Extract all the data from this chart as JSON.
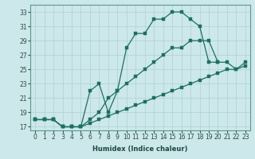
{
  "xlabel": "Humidex (Indice chaleur)",
  "background_color": "#cce8ea",
  "grid_color": "#b0d0d0",
  "line_color": "#1a7060",
  "xlim": [
    -0.5,
    23.5
  ],
  "ylim": [
    16.5,
    34
  ],
  "xticks": [
    0,
    1,
    2,
    3,
    4,
    5,
    6,
    7,
    8,
    9,
    10,
    11,
    12,
    13,
    14,
    15,
    16,
    17,
    18,
    19,
    20,
    21,
    22,
    23
  ],
  "yticks": [
    17,
    19,
    21,
    23,
    25,
    27,
    29,
    31,
    33
  ],
  "line1_x": [
    0,
    1,
    2,
    3,
    4,
    5,
    6,
    7,
    8,
    9,
    10,
    11,
    12,
    13,
    14,
    15,
    16,
    17,
    18,
    19,
    20
  ],
  "line1_y": [
    18,
    18,
    18,
    17,
    17,
    17,
    22,
    23,
    19,
    22,
    28,
    30,
    30,
    32,
    32,
    33,
    33,
    32,
    31,
    26,
    26
  ],
  "line2_x": [
    0,
    1,
    2,
    3,
    4,
    5,
    6,
    7,
    8,
    9,
    10,
    11,
    12,
    13,
    14,
    15,
    16,
    17,
    18,
    19,
    20,
    21,
    22,
    23
  ],
  "line2_y": [
    18,
    18,
    18,
    17,
    17,
    17,
    18,
    19,
    21,
    22,
    23,
    24,
    25,
    26,
    27,
    28,
    28,
    29,
    29,
    29,
    26,
    26,
    25,
    26
  ],
  "line3_x": [
    0,
    1,
    2,
    3,
    4,
    5,
    6,
    7,
    8,
    9,
    10,
    11,
    12,
    13,
    14,
    15,
    16,
    17,
    18,
    19,
    20,
    21,
    22,
    23
  ],
  "line3_y": [
    18,
    18,
    18,
    17,
    17,
    17,
    17.5,
    18,
    18.5,
    19,
    19.5,
    20,
    20.5,
    21,
    21.5,
    22,
    22.5,
    23,
    23.5,
    24,
    24.5,
    25,
    25,
    25.5
  ]
}
